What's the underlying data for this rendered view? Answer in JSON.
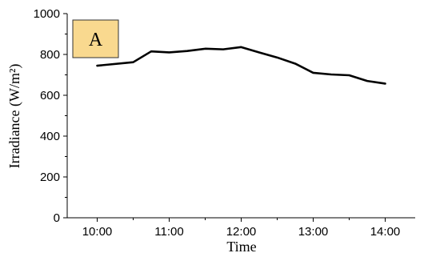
{
  "chart_data": {
    "type": "line",
    "xlabel": "Time",
    "ylabel": "Irradiance (W/m²)",
    "xlim": [
      "09:35",
      "14:25"
    ],
    "ylim": [
      0,
      1000
    ],
    "x_ticks": [
      "10:00",
      "11:00",
      "12:00",
      "13:00",
      "14:00"
    ],
    "y_ticks": [
      0,
      200,
      400,
      600,
      800,
      1000
    ],
    "grid": false,
    "panel_label": "A",
    "colors": {
      "line": "#000000",
      "panel_label_fill": "#f9d98f",
      "panel_label_border": "#333333"
    },
    "series": [
      {
        "x": [
          "10:00",
          "10:30",
          "10:45",
          "11:00",
          "11:15",
          "11:30",
          "11:45",
          "12:00",
          "12:15",
          "12:30",
          "12:45",
          "13:00",
          "13:15",
          "13:30",
          "13:45",
          "14:00"
        ],
        "y": [
          745,
          762,
          815,
          810,
          817,
          828,
          825,
          836,
          810,
          785,
          755,
          710,
          702,
          698,
          670,
          657
        ]
      }
    ]
  }
}
